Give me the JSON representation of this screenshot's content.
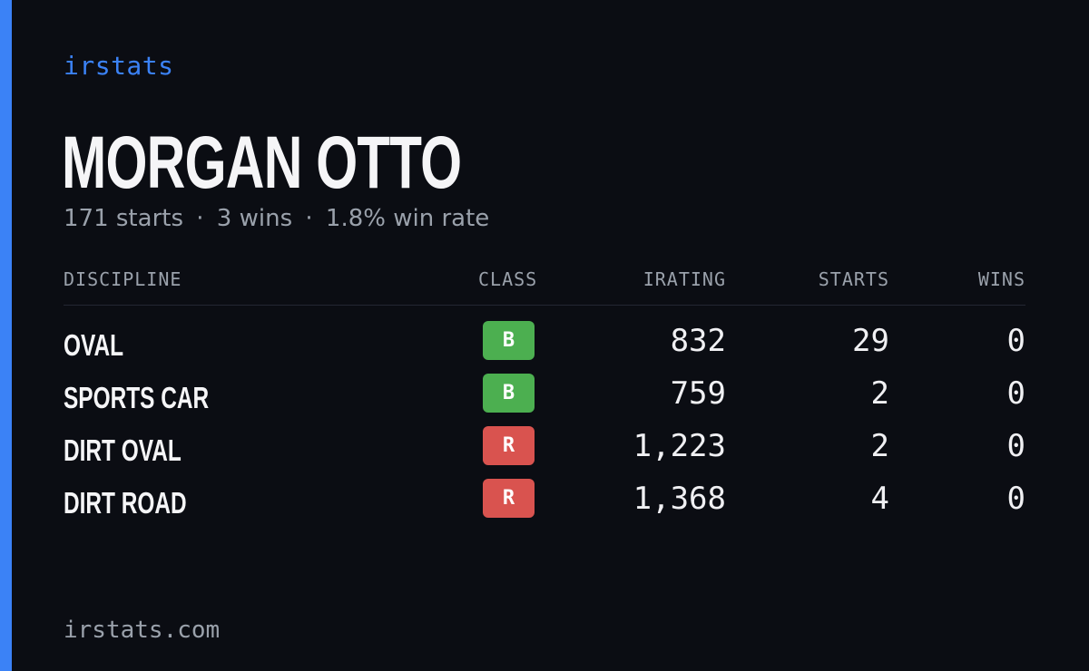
{
  "brand": "irstats",
  "driver": {
    "name": "MORGAN OTTO",
    "summary": {
      "starts": "171 starts",
      "wins": "3 wins",
      "win_rate": "1.8% win rate",
      "separator": "·"
    }
  },
  "table": {
    "headers": {
      "discipline": "DISCIPLINE",
      "class": "CLASS",
      "irating": "IRATING",
      "starts": "STARTS",
      "wins": "WINS"
    },
    "rows": [
      {
        "discipline": "OVAL",
        "class": "B",
        "class_color": "#4caf50",
        "irating": "832",
        "starts": "29",
        "wins": "0"
      },
      {
        "discipline": "SPORTS CAR",
        "class": "B",
        "class_color": "#4caf50",
        "irating": "759",
        "starts": "2",
        "wins": "0"
      },
      {
        "discipline": "DIRT OVAL",
        "class": "R",
        "class_color": "#d9534f",
        "irating": "1,223",
        "starts": "2",
        "wins": "0"
      },
      {
        "discipline": "DIRT ROAD",
        "class": "R",
        "class_color": "#d9534f",
        "irating": "1,368",
        "starts": "4",
        "wins": "0"
      }
    ]
  },
  "footer": {
    "url": "irstats.com"
  },
  "colors": {
    "accent": "#3b82f6",
    "background": "#0b0d13"
  }
}
